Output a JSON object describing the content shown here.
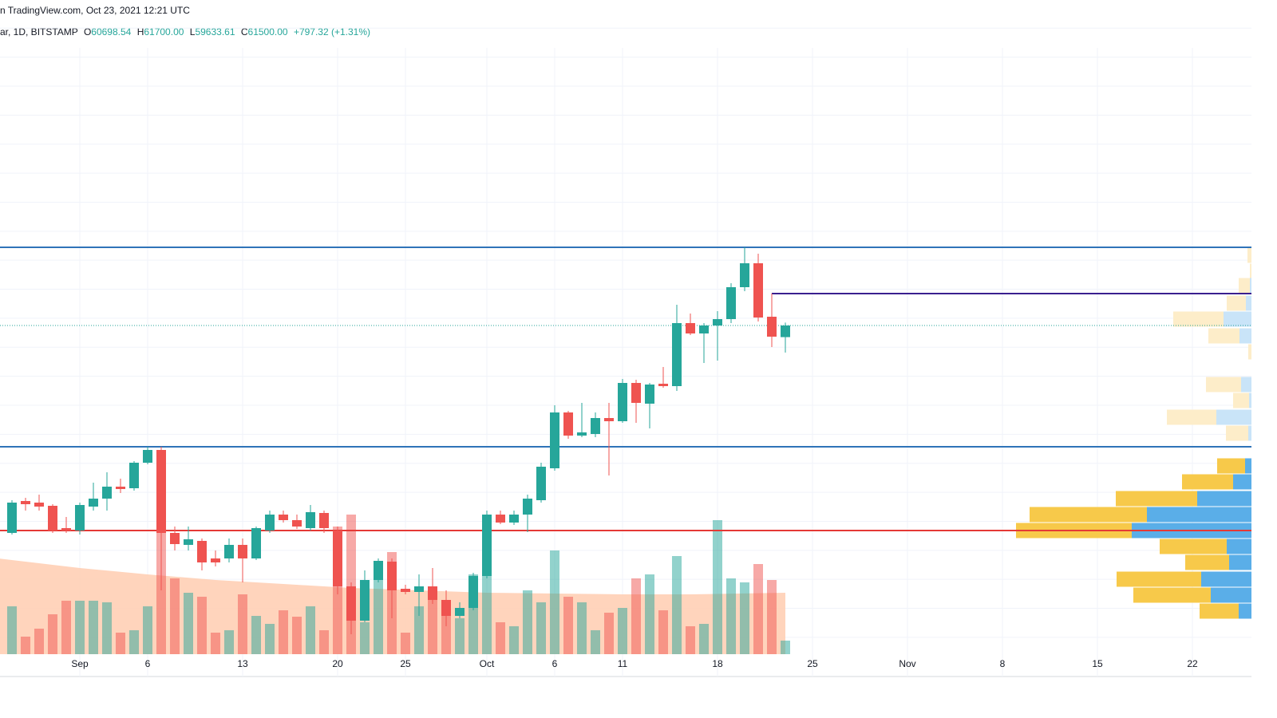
{
  "header": {
    "source": "n TradingView.com, Oct 23, 2021 12:21 UTC",
    "symbol": "ar, 1D, BITSTAMP",
    "ohlc": [
      {
        "label": "O",
        "value": "60698.54"
      },
      {
        "label": "H",
        "value": "61700.00"
      },
      {
        "label": "L",
        "value": "59633.61"
      },
      {
        "label": "C",
        "value": "61500.00"
      }
    ],
    "change": "+797.32 (+1.31%)"
  },
  "chart_data": {
    "type": "candlestick",
    "up_color": "#26a69a",
    "down_color": "#ef5350",
    "x": [
      -5,
      -4,
      -3,
      -2,
      -1,
      0,
      1,
      2,
      3,
      4,
      5,
      6,
      7,
      8,
      9,
      10,
      11,
      12,
      13,
      14,
      15,
      16,
      17,
      18,
      19,
      20,
      21,
      22,
      23,
      24,
      25,
      26,
      27,
      28,
      29,
      30,
      31,
      32,
      33,
      34,
      35,
      36,
      37,
      38,
      39,
      40,
      41,
      42,
      43,
      44,
      45,
      46,
      47,
      48,
      49,
      50,
      51,
      52
    ],
    "open": [
      47200,
      49400,
      49290,
      49070,
      47530,
      47365,
      49015,
      49565,
      50390,
      50280,
      52040,
      52920,
      47200,
      46375,
      46650,
      45440,
      45440,
      46375,
      45440,
      47365,
      48465,
      48080,
      47530,
      48575,
      47365,
      43515,
      41150,
      43955,
      45220,
      43350,
      43130,
      43515,
      42580,
      41480,
      42030,
      44230,
      48465,
      47915,
      48465,
      49455,
      51655,
      55505,
      53910,
      54020,
      55120,
      54900,
      57540,
      56110,
      57485,
      57320,
      61665,
      60950,
      61500,
      61940,
      64140,
      65790,
      62105,
      60698.54
    ],
    "high": [
      49455,
      49620,
      49840,
      49180,
      48300,
      49290,
      50665,
      51380,
      50940,
      52150,
      53140,
      53140,
      47640,
      47640,
      46815,
      45990,
      46815,
      46815,
      47640,
      48740,
      48740,
      48465,
      49125,
      48740,
      47640,
      43790,
      44615,
      45440,
      45440,
      43625,
      44340,
      44780,
      43240,
      42415,
      44450,
      48740,
      48740,
      48740,
      49840,
      52040,
      56000,
      55615,
      56165,
      55505,
      56165,
      57815,
      57760,
      57540,
      58640,
      62930,
      62325,
      61665,
      62490,
      64415,
      66890,
      66450,
      63700,
      61700
    ],
    "low": [
      47090,
      48740,
      48740,
      47200,
      47200,
      47090,
      48740,
      48740,
      49950,
      50115,
      51930,
      43240,
      45990,
      45990,
      44615,
      44890,
      45165,
      43790,
      45330,
      47200,
      47915,
      47475,
      47365,
      47200,
      42965,
      40215,
      41040,
      43790,
      41315,
      42965,
      41480,
      42305,
      40765,
      41315,
      41865,
      44065,
      47805,
      47750,
      47255,
      49290,
      51490,
      53690,
      53800,
      53800,
      51160,
      54790,
      54790,
      54405,
      57210,
      56990,
      60840,
      58915,
      59080,
      61665,
      63865,
      61775,
      60015,
      59633.61
    ],
    "close": [
      49290,
      49180,
      49015,
      47365,
      47365,
      49125,
      49565,
      50390,
      50225,
      52040,
      52920,
      47200,
      46430,
      46760,
      45165,
      45165,
      46375,
      45440,
      47530,
      48465,
      48080,
      47640,
      48630,
      47530,
      43515,
      41150,
      43955,
      45275,
      43240,
      43130,
      43515,
      42580,
      41480,
      42030,
      44230,
      48465,
      47915,
      48465,
      49565,
      51765,
      55505,
      53910,
      54130,
      55120,
      54900,
      57540,
      56165,
      57430,
      57320,
      61665,
      60950,
      61500,
      61940,
      64140,
      65790,
      62050,
      60730,
      61500
    ],
    "volume": [
      60,
      22,
      32,
      50,
      67,
      67,
      67,
      65,
      27,
      30,
      60,
      180,
      95,
      77,
      72,
      27,
      30,
      75,
      48,
      38,
      55,
      47,
      60,
      30,
      160,
      175,
      40,
      95,
      128,
      27,
      60,
      82,
      62,
      45,
      100,
      100,
      40,
      35,
      80,
      65,
      130,
      72,
      65,
      30,
      52,
      58,
      95,
      100,
      55,
      123,
      35,
      38,
      168,
      95,
      90,
      113,
      93,
      17
    ],
    "volume_ylim": [
      0,
      820
    ],
    "volume_ma": {
      "x": [
        -6,
        0,
        5,
        10,
        15,
        20,
        25,
        30,
        35,
        40,
        45,
        52
      ],
      "values": [
        120,
        108,
        100,
        93,
        88,
        83,
        80,
        77,
        76,
        75,
        75,
        77
      ],
      "color": "#ffccb0"
    },
    "xlim": [
      -5.882,
      86.353
    ],
    "ylim": [
      37300,
      83940
    ],
    "xticks": [
      {
        "value": 0,
        "label": "Sep"
      },
      {
        "value": 5,
        "label": "6"
      },
      {
        "value": 12,
        "label": "13"
      },
      {
        "value": 19,
        "label": "20"
      },
      {
        "value": 24,
        "label": "25"
      },
      {
        "value": 30,
        "label": "Oct"
      },
      {
        "value": 35,
        "label": "6"
      },
      {
        "value": 40,
        "label": "11"
      },
      {
        "value": 47,
        "label": "18"
      },
      {
        "value": 54,
        "label": "25"
      },
      {
        "value": 61,
        "label": "Nov"
      },
      {
        "value": 68,
        "label": "8"
      },
      {
        "value": 75,
        "label": "15"
      },
      {
        "value": 82,
        "label": "22"
      }
    ],
    "ygrid": [
      40000,
      42000,
      44000,
      46000,
      48000,
      50000,
      52000,
      54000,
      56000,
      58000,
      60000,
      62000,
      64000,
      66000,
      68000,
      70000,
      72000,
      74000,
      76000,
      78000,
      80000,
      82000
    ],
    "grid": true,
    "levels": [
      {
        "price": 66890,
        "color": "#2f73b8"
      },
      {
        "price": 53140,
        "color": "#2f73b8"
      },
      {
        "price": 47365,
        "color": "#e53935"
      },
      {
        "price": 63700,
        "color": "#3a1f8f",
        "from": 51
      }
    ],
    "profile": {
      "row_height": 1100,
      "width_max": 1568,
      "up_color": "#f7c94a",
      "down_color": "#5aaee8",
      "up_faded": "#fdedc9",
      "down_faded": "#c9e4f8",
      "price": [
        51820,
        50720,
        49565,
        48465,
        47365,
        46265,
        45165,
        44010,
        42910,
        41810,
        66340,
        65240,
        64250,
        63040,
        61940,
        60785,
        59685,
        57430,
        56330,
        55175,
        54075
      ],
      "up": [
        35,
        64,
        102,
        147,
        145,
        84,
        55,
        106,
        97,
        49,
        5,
        2,
        14,
        24,
        63,
        39,
        4,
        44,
        20,
        62,
        28
      ],
      "down": [
        8,
        23,
        68,
        131,
        150,
        31,
        28,
        63,
        51,
        16,
        0,
        0,
        2,
        7,
        35,
        15,
        0,
        13,
        3,
        44,
        4
      ],
      "faded": [
        false,
        false,
        false,
        false,
        false,
        false,
        false,
        false,
        false,
        false,
        true,
        true,
        true,
        true,
        true,
        true,
        true,
        true,
        true,
        true,
        true
      ]
    }
  }
}
